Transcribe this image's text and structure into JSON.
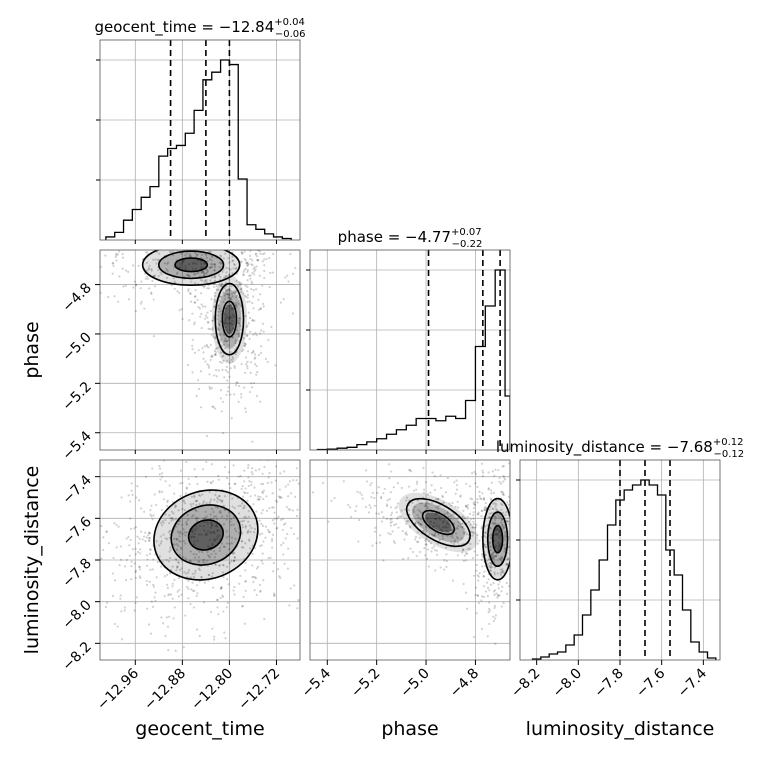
{
  "chart_data": {
    "type": "corner",
    "parameters": [
      "geocent_time",
      "phase",
      "luminosity_distance"
    ],
    "axis_labels": [
      "geocent_time",
      "phase",
      "luminosity_distance"
    ],
    "ranges": [
      [
        -13.02,
        -12.68
      ],
      [
        -5.47,
        -4.66
      ],
      [
        -8.28,
        -7.32
      ]
    ],
    "ticks": [
      {
        "values": [
          -12.96,
          -12.88,
          -12.8,
          -12.72
        ],
        "labels": [
          "−12.96",
          "−12.88",
          "−12.80",
          "−12.72"
        ]
      },
      {
        "values": [
          -5.4,
          -5.2,
          -5.0,
          -4.8
        ],
        "labels": [
          "−5.4",
          "−5.2",
          "−5.0",
          "−4.8"
        ]
      },
      {
        "values": [
          -8.2,
          -8.0,
          -7.8,
          -7.6,
          -7.4
        ],
        "labels": [
          "−8.2",
          "−8.0",
          "−7.8",
          "−7.6",
          "−7.4"
        ]
      }
    ],
    "titles": [
      {
        "name": "geocent_time",
        "median": "−12.84",
        "plus": "+0.04",
        "minus": "−0.06"
      },
      {
        "name": "phase",
        "median": "−4.77",
        "plus": "+0.07",
        "minus": "−0.22"
      },
      {
        "name": "luminosity_distance",
        "median": "−7.68",
        "plus": "+0.12",
        "minus": "−0.12"
      }
    ],
    "quantiles": [
      [
        -12.9,
        -12.84,
        -12.8
      ],
      [
        -4.99,
        -4.77,
        -4.7
      ],
      [
        -7.8,
        -7.68,
        -7.56
      ]
    ],
    "histograms": [
      {
        "edges": [
          -13.01,
          -12.995,
          -12.98,
          -12.965,
          -12.95,
          -12.935,
          -12.92,
          -12.905,
          -12.89,
          -12.875,
          -12.86,
          -12.845,
          -12.83,
          -12.815,
          -12.8,
          -12.785,
          -12.77,
          -12.755,
          -12.74,
          -12.725,
          -12.71,
          -12.695
        ],
        "counts": [
          2,
          5,
          13,
          20,
          28,
          35,
          55,
          60,
          62,
          70,
          85,
          105,
          110,
          118,
          115,
          40,
          10,
          7,
          4,
          2,
          1
        ]
      },
      {
        "edges": [
          -5.44,
          -5.4,
          -5.36,
          -5.32,
          -5.28,
          -5.24,
          -5.2,
          -5.16,
          -5.12,
          -5.08,
          -5.04,
          -5.0,
          -4.96,
          -4.92,
          -4.88,
          -4.84,
          -4.8,
          -4.76,
          -4.72,
          -4.68,
          -4.66
        ],
        "counts": [
          1,
          2,
          4,
          6,
          12,
          18,
          25,
          35,
          45,
          55,
          70,
          70,
          65,
          75,
          70,
          110,
          230,
          320,
          400,
          120
        ]
      },
      {
        "edges": [
          -8.22,
          -8.18,
          -8.14,
          -8.1,
          -8.06,
          -8.02,
          -7.98,
          -7.94,
          -7.9,
          -7.86,
          -7.82,
          -7.78,
          -7.74,
          -7.7,
          -7.66,
          -7.62,
          -7.58,
          -7.54,
          -7.5,
          -7.46,
          -7.42,
          -7.38,
          -7.34
        ],
        "counts": [
          1,
          3,
          6,
          8,
          15,
          25,
          45,
          70,
          100,
          135,
          160,
          170,
          175,
          180,
          175,
          165,
          110,
          85,
          50,
          18,
          8,
          2
        ]
      }
    ],
    "contours_2d": {
      "phase_vs_geocent_time": {
        "lobes": [
          {
            "x": -12.865,
            "y": -4.72,
            "sx": 0.055,
            "sy": 0.055,
            "rot": 0,
            "levels": [
              0.5,
              1.0,
              1.5
            ]
          },
          {
            "x": -12.8,
            "y": -4.94,
            "sx": 0.02,
            "sy": 0.12,
            "rot": 0,
            "levels": [
              0.6,
              1.2
            ]
          }
        ]
      },
      "luminosity_distance_vs_geocent_time": {
        "lobes": [
          {
            "x": -12.84,
            "y": -7.68,
            "sx": 0.06,
            "sy": 0.14,
            "rot": 0.35,
            "levels": [
              0.5,
              1.0,
              1.5
            ]
          }
        ]
      },
      "luminosity_distance_vs_phase": {
        "lobes": [
          {
            "x": -4.95,
            "y": -7.62,
            "sx": 0.12,
            "sy": 0.07,
            "rot": -0.55,
            "levels": [
              0.6,
              1.2
            ]
          },
          {
            "x": -4.71,
            "y": -7.7,
            "sx": 0.04,
            "sy": 0.13,
            "rot": 0,
            "levels": [
              0.5,
              1.0,
              1.5
            ]
          }
        ]
      }
    },
    "grid": true,
    "colors": {
      "line": "#000000",
      "grid": "#b0b0b0",
      "points": "#000000",
      "axes": "#000000"
    }
  }
}
